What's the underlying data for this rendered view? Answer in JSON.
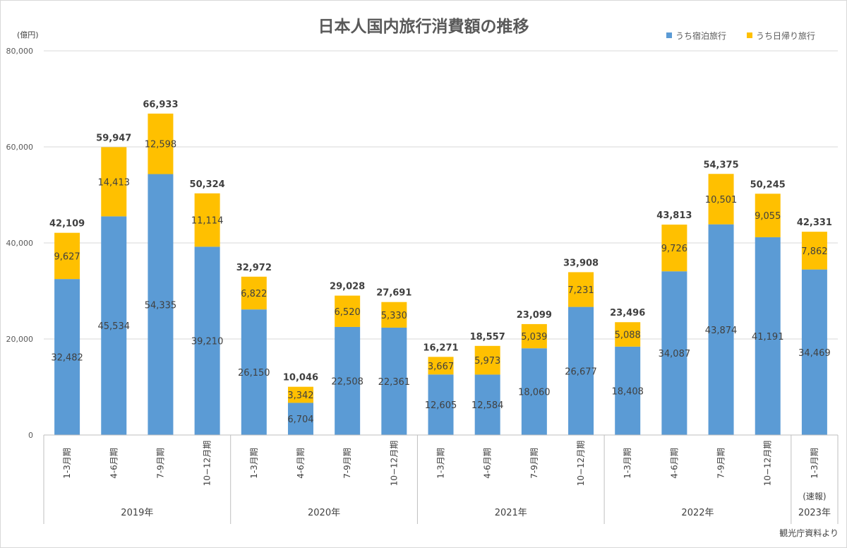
{
  "chart_data": {
    "type": "bar",
    "stacked": true,
    "title": "日本人国内旅行消費額の推移",
    "ylabel": "(億円)",
    "ylim": [
      0,
      80000
    ],
    "yticks": [
      "0",
      "20,000",
      "40,000",
      "60,000",
      "80,000"
    ],
    "ytick_values": [
      0,
      20000,
      40000,
      60000,
      80000
    ],
    "categories": [
      "1-3月期",
      "4-6月期",
      "7-9月期",
      "10−12月期",
      "1-3月期",
      "4-6月期",
      "7-9月期",
      "10−12月期",
      "1-3月期",
      "4-6月期",
      "7-9月期",
      "10−12月期",
      "1-3月期",
      "4-6月期",
      "7-9月期",
      "10−12月期",
      "1-3月期"
    ],
    "groups": [
      {
        "label": "2019年",
        "count": 4
      },
      {
        "label": "2020年",
        "count": 4
      },
      {
        "label": "2021年",
        "count": 4
      },
      {
        "label": "2022年",
        "count": 4
      },
      {
        "label": "2023年",
        "count": 1,
        "note": "(速報)"
      }
    ],
    "series": [
      {
        "name": "うち宿泊旅行",
        "color": "#5B9BD5",
        "values": [
          32482,
          45534,
          54335,
          39210,
          26150,
          6704,
          22508,
          22361,
          12605,
          12584,
          18060,
          26677,
          18408,
          34087,
          43874,
          41191,
          34469
        ],
        "labels": [
          "32,482",
          "45,534",
          "54,335",
          "39,210",
          "26,150",
          "6,704",
          "22,508",
          "22,361",
          "12,605",
          "12,584",
          "18,060",
          "26,677",
          "18,408",
          "34,087",
          "43,874",
          "41,191",
          "34,469"
        ]
      },
      {
        "name": "うち日帰り旅行",
        "color": "#FFC000",
        "values": [
          9627,
          14413,
          12598,
          11114,
          6822,
          3342,
          6520,
          5330,
          3667,
          5973,
          5039,
          7231,
          5088,
          9726,
          10501,
          9055,
          7862
        ],
        "labels": [
          "9,627",
          "14,413",
          "12,598",
          "11,114",
          "6,822",
          "3,342",
          "6,520",
          "5,330",
          "3,667",
          "5,973",
          "5,039",
          "7,231",
          "5,088",
          "9,726",
          "10,501",
          "9,055",
          "7,862"
        ]
      }
    ],
    "totals": [
      42109,
      59947,
      66933,
      50324,
      32972,
      10046,
      29028,
      27691,
      16271,
      18557,
      23099,
      33908,
      23496,
      43813,
      54375,
      50245,
      42331
    ],
    "total_labels": [
      "42,109",
      "59,947",
      "66,933",
      "50,324",
      "32,972",
      "10,046",
      "29,028",
      "27,691",
      "16,271",
      "18,557",
      "23,099",
      "33,908",
      "23,496",
      "43,813",
      "54,375",
      "50,245",
      "42,331"
    ],
    "legend_position": "top-right",
    "grid": true,
    "source": "観光庁資料より"
  }
}
